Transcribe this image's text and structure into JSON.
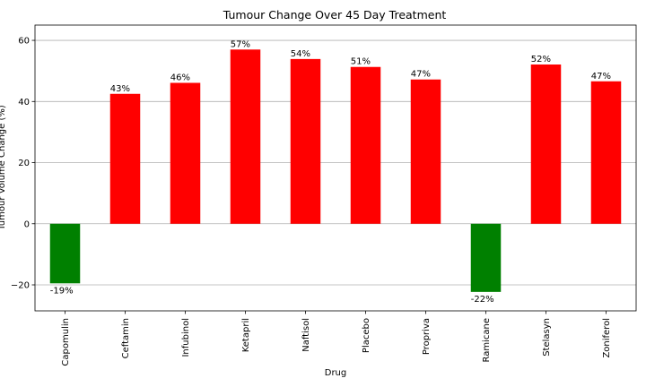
{
  "chart_data": {
    "type": "bar",
    "title": "Tumour Change Over 45 Day Treatment",
    "xlabel": "Drug",
    "ylabel": "Tumour Volume Change (%)",
    "categories": [
      "Capomulin",
      "Ceftamin",
      "Infubinol",
      "Ketapril",
      "Naftisol",
      "Placebo",
      "Propriva",
      "Ramicane",
      "Stelasyn",
      "Zoniferol"
    ],
    "values": [
      -19.5,
      42.5,
      46.1,
      57.0,
      53.9,
      51.3,
      47.2,
      -22.3,
      52.1,
      46.6
    ],
    "data_labels": [
      "-19%",
      "43%",
      "46%",
      "57%",
      "54%",
      "51%",
      "47%",
      "-22%",
      "52%",
      "47%"
    ],
    "ylim": [
      -28.5,
      65
    ],
    "yticks": [
      -20,
      0,
      20,
      40,
      60
    ],
    "ytick_labels": [
      "−20",
      "0",
      "20",
      "40",
      "60"
    ],
    "grid": "horizontal",
    "colors": {
      "positive": "#ff0000",
      "negative": "#008000",
      "grid": "#b0b0b0"
    }
  }
}
